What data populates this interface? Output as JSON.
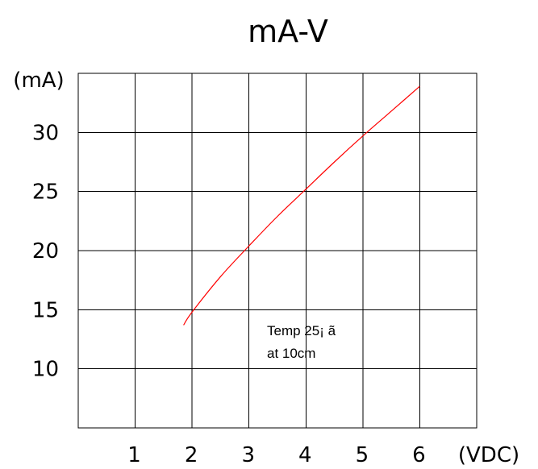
{
  "chart_data": {
    "type": "line",
    "title": "mA-V",
    "xlabel": "(VDC)",
    "ylabel": "(mA)",
    "xlim": [
      0,
      7
    ],
    "ylim": [
      5,
      35
    ],
    "x_ticks": [
      "1",
      "2",
      "3",
      "4",
      "5",
      "6"
    ],
    "y_ticks": [
      "10",
      "15",
      "20",
      "25",
      "30"
    ],
    "grid": true,
    "series": [
      {
        "color": "#ff0000",
        "x": [
          1.85,
          2.0,
          2.5,
          3.0,
          3.5,
          4.0,
          4.5,
          5.0,
          5.5,
          6.0
        ],
        "y": [
          13.7,
          14.8,
          17.8,
          20.4,
          22.9,
          25.2,
          27.5,
          29.7,
          31.8,
          33.9
        ]
      }
    ],
    "annotation": [
      "Temp 25¡ ã",
      "at 10cm"
    ]
  }
}
